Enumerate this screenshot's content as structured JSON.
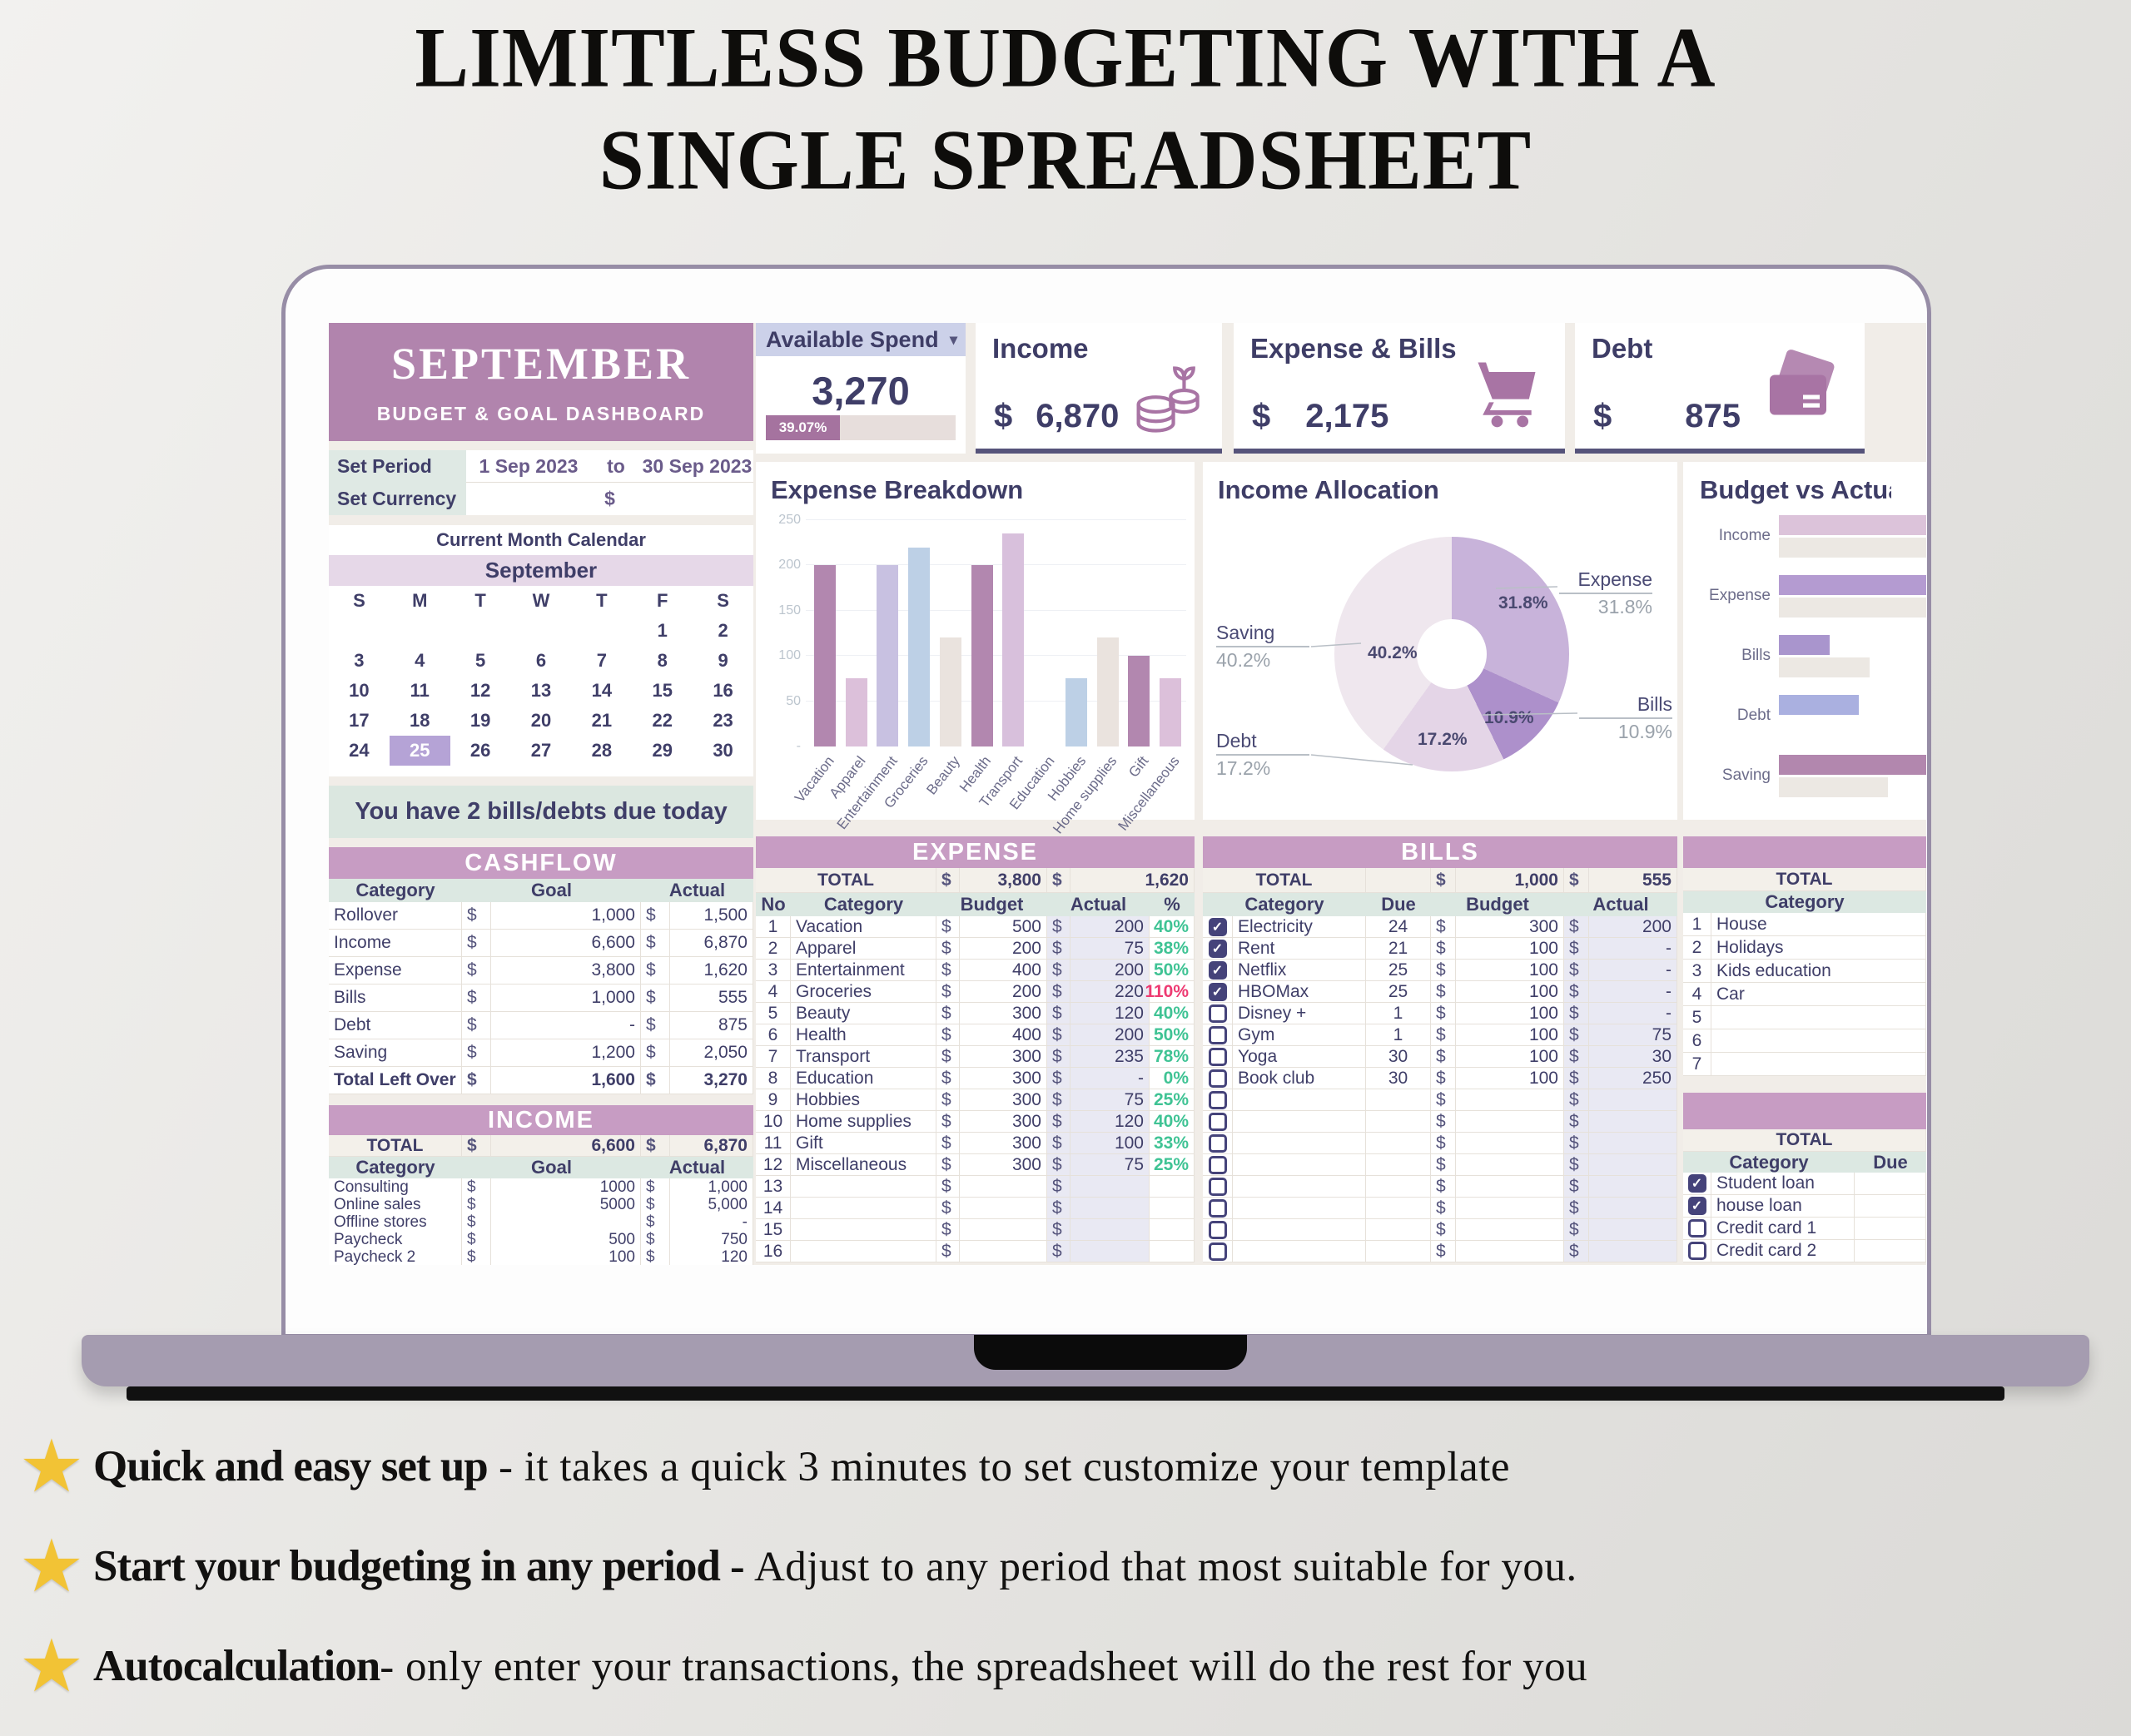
{
  "page": {
    "title_line1": "LIMITLESS BUDGETING WITH A",
    "title_line2": "SINGLE SPREADSHEET",
    "star_color": "#f2c335",
    "features": [
      {
        "lead": "Quick and easy set up",
        "text": " - it takes a quick 3 minutes to set customize your template"
      },
      {
        "lead": "Start your budgeting in any period - ",
        "text": "Adjust to any period that most suitable for you."
      },
      {
        "lead": "Autocalculation",
        "text": "- only enter your transactions, the spreadsheet will do the rest for you"
      }
    ]
  },
  "dashboard": {
    "header": {
      "month": "SEPTEMBER",
      "subtitle": "BUDGET & GOAL DASHBOARD"
    },
    "settings": {
      "period_label": "Set Period",
      "period_start": "1 Sep 2023",
      "period_to": "to",
      "period_end": "30 Sep 2023",
      "currency_label": "Set Currency",
      "currency": "$"
    },
    "calendar": {
      "title": "Current Month Calendar",
      "month": "September",
      "day_headers": [
        "S",
        "M",
        "T",
        "W",
        "T",
        "F",
        "S"
      ],
      "weeks": [
        [
          "",
          "",
          "",
          "",
          "",
          "1",
          "2"
        ],
        [
          "3",
          "4",
          "5",
          "6",
          "7",
          "8",
          "9"
        ],
        [
          "10",
          "11",
          "12",
          "13",
          "14",
          "15",
          "16"
        ],
        [
          "17",
          "18",
          "19",
          "20",
          "21",
          "22",
          "23"
        ],
        [
          "24",
          "25",
          "26",
          "27",
          "28",
          "29",
          "30"
        ]
      ],
      "selected_day": "25"
    },
    "notice": "You have 2 bills/debts due today",
    "cards": {
      "available_spend": {
        "label": "Available Spend",
        "value": "3,270",
        "percent_label": "39.07%",
        "percent": 39.07,
        "fill_color": "#a5739f"
      },
      "income": {
        "label": "Income",
        "currency": "$",
        "value": "6,870",
        "icon": "coins-icon"
      },
      "expense_bills": {
        "label": "Expense & Bills",
        "currency": "$",
        "value": "2,175",
        "icon": "cart-icon"
      },
      "debt": {
        "label": "Debt",
        "currency": "$",
        "value": "875",
        "icon": "credit-cards-icon"
      }
    },
    "sections": {
      "cashflow": {
        "title": "CASHFLOW",
        "currency": "$",
        "headers": [
          "Category",
          "Goal",
          "Actual"
        ],
        "rows": [
          {
            "category": "Rollover",
            "goal": "1,000",
            "actual": "1,500"
          },
          {
            "category": "Income",
            "goal": "6,600",
            "actual": "6,870"
          },
          {
            "category": "Expense",
            "goal": "3,800",
            "actual": "1,620"
          },
          {
            "category": "Bills",
            "goal": "1,000",
            "actual": "555"
          },
          {
            "category": "Debt",
            "goal": "-",
            "actual": "875"
          },
          {
            "category": "Saving",
            "goal": "1,200",
            "actual": "2,050"
          },
          {
            "category": "Total Left Over",
            "goal": "1,600",
            "actual": "3,270",
            "bold": true
          }
        ]
      },
      "income": {
        "title": "INCOME",
        "total": {
          "label": "TOTAL",
          "goal": "6,600",
          "actual": "6,870"
        },
        "headers": [
          "Category",
          "Goal",
          "Actual"
        ],
        "rows": [
          {
            "category": "Consulting",
            "goal": "1000",
            "actual": "1,000"
          },
          {
            "category": "Online sales",
            "goal": "5000",
            "actual": "5,000"
          },
          {
            "category": "Offline stores",
            "goal": "",
            "actual": "-"
          },
          {
            "category": "Paycheck",
            "goal": "500",
            "actual": "750"
          },
          {
            "category": "Paycheck 2",
            "goal": "100",
            "actual": "120"
          }
        ]
      },
      "expense": {
        "title": "EXPENSE",
        "total": {
          "label": "TOTAL",
          "budget": "3,800",
          "actual": "1,620"
        },
        "headers": [
          "No",
          "Category",
          "Budget",
          "Actual",
          "%"
        ],
        "ok_color": "#3fc394",
        "over_color": "#ee3a72",
        "rows": [
          {
            "no": "1",
            "category": "Vacation",
            "budget": "500",
            "actual": "200",
            "pct": "40%",
            "status": "ok"
          },
          {
            "no": "2",
            "category": "Apparel",
            "budget": "200",
            "actual": "75",
            "pct": "38%",
            "status": "ok"
          },
          {
            "no": "3",
            "category": "Entertainment",
            "budget": "400",
            "actual": "200",
            "pct": "50%",
            "status": "ok"
          },
          {
            "no": "4",
            "category": "Groceries",
            "budget": "200",
            "actual": "220",
            "pct": "110%",
            "status": "over"
          },
          {
            "no": "5",
            "category": "Beauty",
            "budget": "300",
            "actual": "120",
            "pct": "40%",
            "status": "ok"
          },
          {
            "no": "6",
            "category": "Health",
            "budget": "400",
            "actual": "200",
            "pct": "50%",
            "status": "ok"
          },
          {
            "no": "7",
            "category": "Transport",
            "budget": "300",
            "actual": "235",
            "pct": "78%",
            "status": "ok"
          },
          {
            "no": "8",
            "category": "Education",
            "budget": "300",
            "actual": "-",
            "pct": "0%",
            "status": "ok"
          },
          {
            "no": "9",
            "category": "Hobbies",
            "budget": "300",
            "actual": "75",
            "pct": "25%",
            "status": "ok"
          },
          {
            "no": "10",
            "category": "Home supplies",
            "budget": "300",
            "actual": "120",
            "pct": "40%",
            "status": "ok"
          },
          {
            "no": "11",
            "category": "Gift",
            "budget": "300",
            "actual": "100",
            "pct": "33%",
            "status": "ok"
          },
          {
            "no": "12",
            "category": "Miscellaneous",
            "budget": "300",
            "actual": "75",
            "pct": "25%",
            "status": "ok"
          },
          {
            "no": "13",
            "category": "",
            "budget": "",
            "actual": "",
            "pct": "",
            "status": "ok"
          },
          {
            "no": "14",
            "category": "",
            "budget": "",
            "actual": "",
            "pct": "",
            "status": "ok"
          },
          {
            "no": "15",
            "category": "",
            "budget": "",
            "actual": "",
            "pct": "",
            "status": "ok"
          },
          {
            "no": "16",
            "category": "",
            "budget": "",
            "actual": "",
            "pct": "",
            "status": "ok"
          }
        ]
      },
      "bills": {
        "title": "BILLS",
        "total": {
          "label": "TOTAL",
          "budget": "1,000",
          "actual": "555"
        },
        "headers": [
          "Category",
          "Due",
          "Budget",
          "Actual"
        ],
        "rows": [
          {
            "checked": true,
            "category": "Electricity",
            "due": "24",
            "budget": "300",
            "actual": "200"
          },
          {
            "checked": true,
            "category": "Rent",
            "due": "21",
            "budget": "100",
            "actual": "-"
          },
          {
            "checked": true,
            "category": "Netflix",
            "due": "25",
            "budget": "100",
            "actual": "-"
          },
          {
            "checked": true,
            "category": "HBOMax",
            "due": "25",
            "budget": "100",
            "actual": "-"
          },
          {
            "checked": false,
            "category": "Disney +",
            "due": "1",
            "budget": "100",
            "actual": "-"
          },
          {
            "checked": false,
            "category": "Gym",
            "due": "1",
            "budget": "100",
            "actual": "75"
          },
          {
            "checked": false,
            "category": "Yoga",
            "due": "30",
            "budget": "100",
            "actual": "30"
          },
          {
            "checked": false,
            "category": "Book club",
            "due": "30",
            "budget": "100",
            "actual": "250"
          },
          {
            "checked": false,
            "category": "",
            "due": "",
            "budget": "",
            "actual": ""
          },
          {
            "checked": false,
            "category": "",
            "due": "",
            "budget": "",
            "actual": ""
          },
          {
            "checked": false,
            "category": "",
            "due": "",
            "budget": "",
            "actual": ""
          },
          {
            "checked": false,
            "category": "",
            "due": "",
            "budget": "",
            "actual": ""
          },
          {
            "checked": false,
            "category": "",
            "due": "",
            "budget": "",
            "actual": ""
          },
          {
            "checked": false,
            "category": "",
            "due": "",
            "budget": "",
            "actual": ""
          },
          {
            "checked": false,
            "category": "",
            "due": "",
            "budget": "",
            "actual": ""
          },
          {
            "checked": false,
            "category": "",
            "due": "",
            "budget": "",
            "actual": ""
          }
        ]
      },
      "saving_goals": {
        "total_label": "TOTAL",
        "header": "Category",
        "rows": [
          {
            "no": "1",
            "category": "House"
          },
          {
            "no": "2",
            "category": "Holidays"
          },
          {
            "no": "3",
            "category": "Kids education"
          },
          {
            "no": "4",
            "category": "Car"
          },
          {
            "no": "5",
            "category": ""
          },
          {
            "no": "6",
            "category": ""
          },
          {
            "no": "7",
            "category": ""
          }
        ]
      },
      "debts": {
        "total_label": "TOTAL",
        "headers": [
          "Category",
          "Due"
        ],
        "rows": [
          {
            "checked": true,
            "category": "Student loan"
          },
          {
            "checked": true,
            "category": "house loan"
          },
          {
            "checked": false,
            "category": "Credit card 1"
          },
          {
            "checked": false,
            "category": "Credit card 2"
          }
        ]
      }
    }
  },
  "chart_data": [
    {
      "id": "expense_breakdown",
      "type": "bar",
      "title": "Expense Breakdown",
      "categories": [
        "Vacation",
        "Apparel",
        "Entertainment",
        "Groceries",
        "Beauty",
        "Health",
        "Transport",
        "Education",
        "Hobbies",
        "Home supplies",
        "Gift",
        "Miscellaneous"
      ],
      "values": [
        200,
        75,
        200,
        220,
        120,
        200,
        235,
        0,
        75,
        120,
        100,
        75
      ],
      "ylim": [
        0,
        250
      ],
      "ytick_labels": [
        "250",
        "200",
        "150",
        "100",
        "50",
        "-"
      ],
      "grid": true,
      "legend": false,
      "bar_colors": [
        "#b287af",
        "#dcc0da",
        "#c8c1e1",
        "#bdd0e6",
        "#eae3de",
        "#b287af",
        "#d8c0dc",
        "#c8c1e1",
        "#bdd0e6",
        "#eae3de",
        "#b287af",
        "#dcc0da"
      ]
    },
    {
      "id": "income_allocation",
      "type": "pie",
      "donut": true,
      "title": "Income Allocation",
      "slices": [
        {
          "label": "Expense",
          "pct": 31.8,
          "pct_label": "31.8%",
          "color": "#c8b3da"
        },
        {
          "label": "Bills",
          "pct": 10.9,
          "pct_label": "10.9%",
          "color": "#ad90cb"
        },
        {
          "label": "Debt",
          "pct": 17.2,
          "pct_label": "17.2%",
          "color": "#e4d5e7"
        },
        {
          "label": "Saving",
          "pct": 40.2,
          "pct_label": "40.2%",
          "color": "#efe7ee"
        }
      ]
    },
    {
      "id": "budget_vs_actual",
      "type": "bar",
      "orientation": "horizontal",
      "title": "Budget vs Actual",
      "displayed_title": "Budget vs Ac",
      "categories": [
        "Income",
        "Expense",
        "Bills",
        "Debt",
        "Saving"
      ],
      "series": [
        {
          "name": "Actual",
          "values": [
            6870,
            1620,
            555,
            875,
            2050
          ],
          "colors": [
            "#dcc3da",
            "#b49bd1",
            "#a995cd",
            "#aab0e0",
            "#b287ae"
          ]
        },
        {
          "name": "Budget",
          "values": [
            6600,
            3800,
            1000,
            0,
            1200
          ],
          "color": "#ece8e3"
        }
      ],
      "xmax_visible": 1600
    }
  ]
}
